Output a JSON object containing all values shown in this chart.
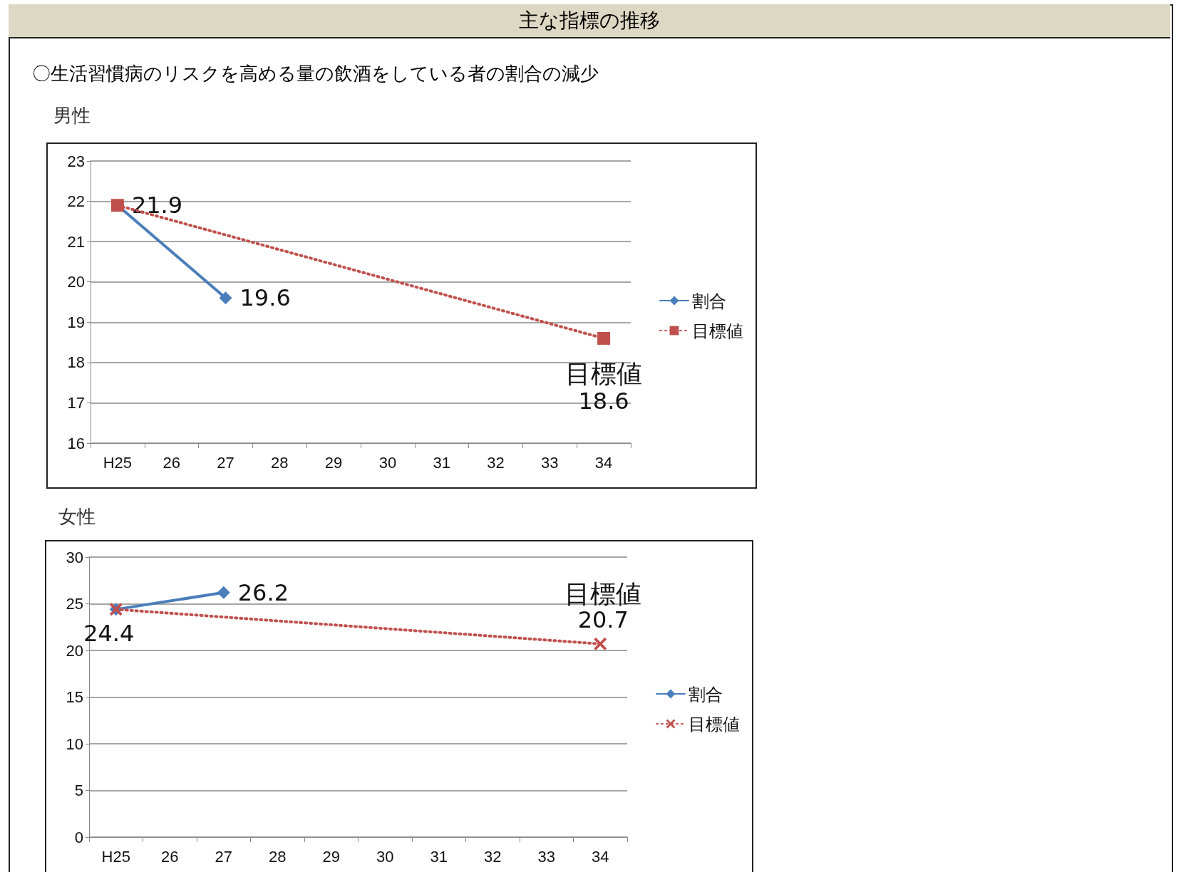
{
  "chart_data": [
    {
      "type": "line",
      "title": "男性",
      "annotations": [
        "主な指標の推移",
        "〇生活習慣病のリスクを高める量の飲酒をしている者の割合の減少",
        {
          "text": "目標値",
          "x": "34",
          "y": 18.6
        }
      ],
      "categories": [
        "H25",
        "26",
        "27",
        "28",
        "29",
        "30",
        "31",
        "32",
        "33",
        "34"
      ],
      "series": [
        {
          "name": "割合",
          "color": "#4a7ebb",
          "marker": "diamond",
          "line_style": "solid",
          "values": [
            21.9,
            null,
            19.6,
            null,
            null,
            null,
            null,
            null,
            null,
            null
          ],
          "value_labels": [
            "21.9",
            null,
            "19.6",
            null,
            null,
            null,
            null,
            null,
            null,
            null
          ]
        },
        {
          "name": "目標値",
          "color": "#c0504d",
          "marker": "square",
          "line_style": "dotted",
          "values": [
            21.9,
            null,
            null,
            null,
            null,
            null,
            null,
            null,
            null,
            18.6
          ],
          "value_labels": [
            null,
            null,
            null,
            null,
            null,
            null,
            null,
            null,
            null,
            "18.6"
          ]
        }
      ],
      "ylim": [
        16,
        23
      ],
      "yticks": [
        16,
        17,
        18,
        19,
        20,
        21,
        22,
        23
      ],
      "grid": "y",
      "legend": "right"
    },
    {
      "type": "line",
      "title": "女性",
      "annotations": [
        {
          "text": "目標値",
          "x": "34",
          "y": 20.7
        }
      ],
      "categories": [
        "H25",
        "26",
        "27",
        "28",
        "29",
        "30",
        "31",
        "32",
        "33",
        "34"
      ],
      "series": [
        {
          "name": "割合",
          "color": "#4a7ebb",
          "marker": "diamond",
          "line_style": "solid",
          "values": [
            24.4,
            null,
            26.2,
            null,
            null,
            null,
            null,
            null,
            null,
            null
          ],
          "value_labels": [
            "24.4",
            null,
            "26.2",
            null,
            null,
            null,
            null,
            null,
            null,
            null
          ]
        },
        {
          "name": "目標値",
          "color": "#c0504d",
          "marker": "cross",
          "line_style": "dotted",
          "values": [
            24.4,
            null,
            null,
            null,
            null,
            null,
            null,
            null,
            null,
            20.7
          ],
          "value_labels": [
            null,
            null,
            null,
            null,
            null,
            null,
            null,
            null,
            null,
            "20.7"
          ]
        }
      ],
      "ylim": [
        0,
        30
      ],
      "yticks": [
        0,
        5,
        10,
        15,
        20,
        25,
        30
      ],
      "grid": "y",
      "legend": "right"
    }
  ]
}
